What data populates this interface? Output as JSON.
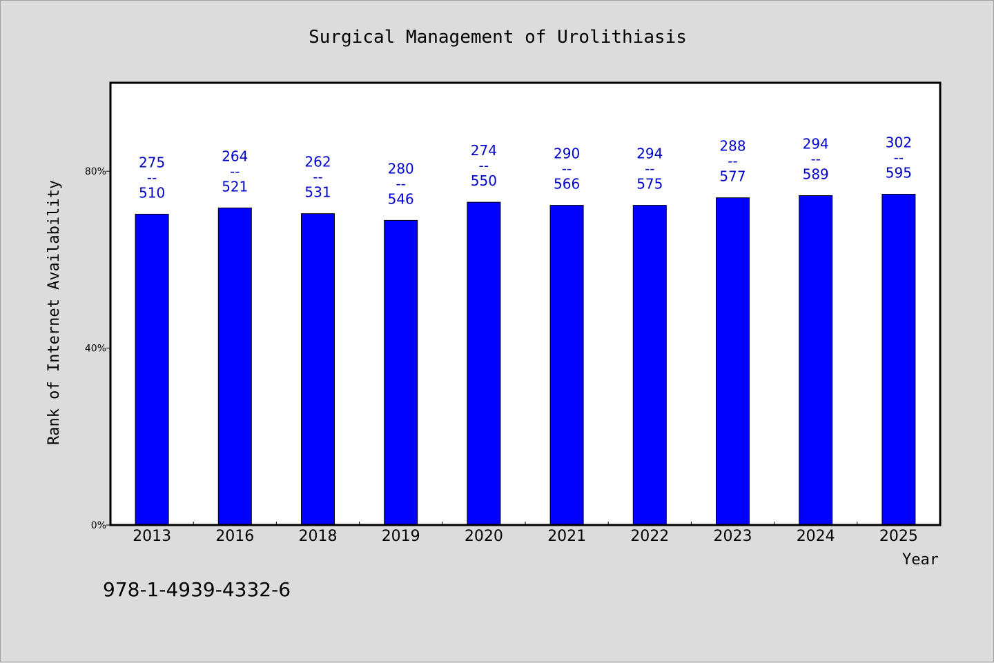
{
  "chart_data": {
    "type": "bar",
    "title": "Surgical Management of Urolithiasis",
    "xlabel": "Year",
    "ylabel": "Rank of Internet Availability",
    "categories": [
      "2013",
      "2016",
      "2018",
      "2019",
      "2020",
      "2021",
      "2022",
      "2023",
      "2024",
      "2025"
    ],
    "values": [
      70.3,
      71.7,
      70.4,
      68.9,
      73.0,
      72.3,
      72.3,
      74.0,
      74.5,
      74.8
    ],
    "value_unit": "%",
    "ranks": [
      "275",
      "264",
      "262",
      "280",
      "274",
      "290",
      "294",
      "288",
      "294",
      "302"
    ],
    "totals": [
      "510",
      "521",
      "531",
      "546",
      "550",
      "566",
      "575",
      "577",
      "589",
      "595"
    ],
    "label_separator": "--",
    "yticks": [
      "0%",
      "40%",
      "80%"
    ],
    "ytick_values": [
      0,
      40,
      80
    ],
    "ylim": [
      0,
      100
    ],
    "bar_color": "#0000ff",
    "label_color": "#0000cc",
    "plot_background": "#ffffff",
    "page_background": "#dcdcdc",
    "grid": false,
    "legend": "none"
  },
  "footnote": "978-1-4939-4332-6"
}
